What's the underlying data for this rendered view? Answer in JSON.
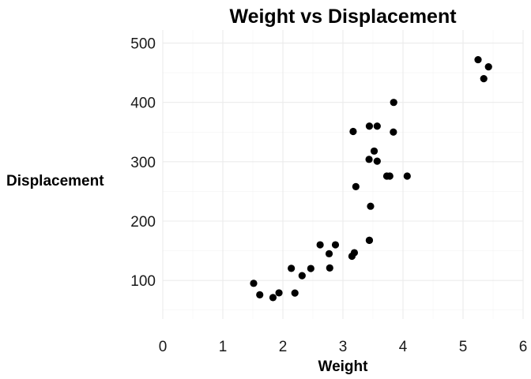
{
  "chart_data": {
    "type": "scatter",
    "title": "Weight vs Displacement",
    "xlabel": "Weight",
    "ylabel": "Displacement",
    "xlim": [
      0,
      6
    ],
    "ylim": [
      35,
      522
    ],
    "xticks": [
      0,
      1,
      2,
      3,
      4,
      5,
      6
    ],
    "yticks": [
      100,
      200,
      300,
      400,
      500
    ],
    "grid": true,
    "point_color": "#000000",
    "points": [
      {
        "x": 2.62,
        "y": 160
      },
      {
        "x": 2.875,
        "y": 160
      },
      {
        "x": 2.32,
        "y": 108
      },
      {
        "x": 3.215,
        "y": 258
      },
      {
        "x": 3.44,
        "y": 360
      },
      {
        "x": 3.46,
        "y": 225
      },
      {
        "x": 3.57,
        "y": 360
      },
      {
        "x": 3.19,
        "y": 146.7
      },
      {
        "x": 3.15,
        "y": 140.8
      },
      {
        "x": 3.44,
        "y": 167.6
      },
      {
        "x": 3.44,
        "y": 167.6
      },
      {
        "x": 4.07,
        "y": 275.8
      },
      {
        "x": 3.73,
        "y": 275.8
      },
      {
        "x": 3.78,
        "y": 275.8
      },
      {
        "x": 5.25,
        "y": 472
      },
      {
        "x": 5.424,
        "y": 460
      },
      {
        "x": 5.345,
        "y": 440
      },
      {
        "x": 2.2,
        "y": 78.7
      },
      {
        "x": 1.615,
        "y": 75.7
      },
      {
        "x": 1.835,
        "y": 71.1
      },
      {
        "x": 2.465,
        "y": 120.1
      },
      {
        "x": 3.52,
        "y": 318
      },
      {
        "x": 3.435,
        "y": 304
      },
      {
        "x": 3.84,
        "y": 350
      },
      {
        "x": 3.845,
        "y": 400
      },
      {
        "x": 1.935,
        "y": 79
      },
      {
        "x": 2.14,
        "y": 120.3
      },
      {
        "x": 1.513,
        "y": 95.1
      },
      {
        "x": 3.17,
        "y": 351
      },
      {
        "x": 2.77,
        "y": 145
      },
      {
        "x": 3.57,
        "y": 301
      },
      {
        "x": 2.78,
        "y": 121
      }
    ]
  }
}
